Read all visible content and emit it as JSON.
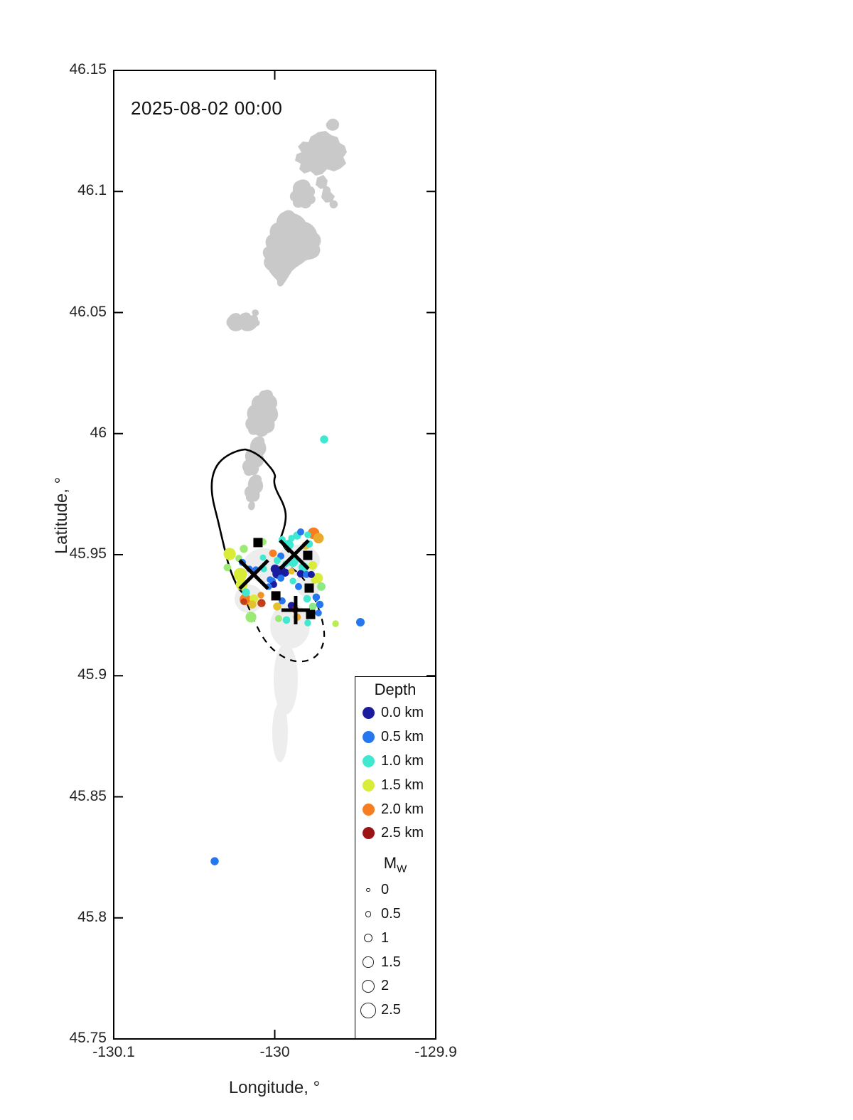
{
  "chart_data": {
    "type": "scatter",
    "timestamp_label": "2025-08-02 00:00",
    "xlabel": "Longitude, °",
    "ylabel": "Latitude, °",
    "xlim": [
      -130.1,
      -129.9
    ],
    "ylim": [
      45.75,
      46.15
    ],
    "grid": false,
    "x_ticks": [
      {
        "value": -130.1,
        "label": "-130.1"
      },
      {
        "value": -130.0,
        "label": "-130"
      },
      {
        "value": -129.9,
        "label": "-129.9"
      }
    ],
    "y_ticks": [
      {
        "value": 46.15,
        "label": "46.15"
      },
      {
        "value": 46.1,
        "label": "46.1"
      },
      {
        "value": 46.05,
        "label": "46.05"
      },
      {
        "value": 46.0,
        "label": "46"
      },
      {
        "value": 45.95,
        "label": "45.95"
      },
      {
        "value": 45.9,
        "label": "45.9"
      },
      {
        "value": 45.85,
        "label": "45.85"
      },
      {
        "value": 45.8,
        "label": "45.8"
      },
      {
        "value": 45.75,
        "label": "45.75"
      }
    ],
    "legend": {
      "depth_title": "Depth",
      "depth_entries": [
        {
          "label": "0.0 km",
          "depth_km": 0.0
        },
        {
          "label": "0.5 km",
          "depth_km": 0.5
        },
        {
          "label": "1.0 km",
          "depth_km": 1.0
        },
        {
          "label": "1.5 km",
          "depth_km": 1.5
        },
        {
          "label": "2.0 km",
          "depth_km": 2.0
        },
        {
          "label": "2.5 km",
          "depth_km": 2.5
        }
      ],
      "mw_title": "M",
      "mw_subscript": "W",
      "mw_entries": [
        {
          "label": "0",
          "mw": 0.0
        },
        {
          "label": "0.5",
          "mw": 0.5
        },
        {
          "label": "1",
          "mw": 1.0
        },
        {
          "label": "1.5",
          "mw": 1.5
        },
        {
          "label": "2",
          "mw": 2.0
        },
        {
          "label": "2.5",
          "mw": 2.5
        }
      ]
    },
    "depth_colormap": [
      {
        "depth_km": 0.0,
        "color": "#1b1ba0"
      },
      {
        "depth_km": 0.5,
        "color": "#2577f0"
      },
      {
        "depth_km": 1.0,
        "color": "#3fe8d0"
      },
      {
        "depth_km": 1.5,
        "color": "#d8ec38"
      },
      {
        "depth_km": 2.0,
        "color": "#f87d20"
      },
      {
        "depth_km": 2.5,
        "color": "#9b1416"
      }
    ],
    "earthquakes": [
      {
        "lon": -129.9839,
        "lat": 45.9594,
        "depth_km": 0.5,
        "mw": 0.7
      },
      {
        "lon": -129.9759,
        "lat": 45.9588,
        "depth_km": 2.0,
        "mw": 1.7
      },
      {
        "lon": -129.9728,
        "lat": 45.9568,
        "depth_km": 1.8,
        "mw": 1.4
      },
      {
        "lon": -129.9795,
        "lat": 45.9582,
        "depth_km": 1.0,
        "mw": 0.6
      },
      {
        "lon": -129.9786,
        "lat": 45.9544,
        "depth_km": 1.0,
        "mw": 0.8
      },
      {
        "lon": -129.9861,
        "lat": 45.9579,
        "depth_km": 1.0,
        "mw": 0.9
      },
      {
        "lon": -129.9896,
        "lat": 45.9568,
        "depth_km": 1.0,
        "mw": 0.6
      },
      {
        "lon": -129.9808,
        "lat": 45.9538,
        "depth_km": 1.7,
        "mw": 0.9
      },
      {
        "lon": -130.0073,
        "lat": 45.9553,
        "depth_km": 1.3,
        "mw": 0.7
      },
      {
        "lon": -129.9914,
        "lat": 45.9541,
        "depth_km": 1.0,
        "mw": 1.3
      },
      {
        "lon": -129.9954,
        "lat": 45.9562,
        "depth_km": 1.0,
        "mw": 0.7
      },
      {
        "lon": -130.0011,
        "lat": 45.9506,
        "depth_km": 2.0,
        "mw": 0.8
      },
      {
        "lon": -130.0192,
        "lat": 45.9524,
        "depth_km": 1.3,
        "mw": 0.9
      },
      {
        "lon": -130.028,
        "lat": 45.9503,
        "depth_km": 1.5,
        "mw": 1.8
      },
      {
        "lon": -130.0223,
        "lat": 45.9485,
        "depth_km": 1.3,
        "mw": 0.7
      },
      {
        "lon": -130.0201,
        "lat": 45.9468,
        "depth_km": 0.5,
        "mw": 0.7
      },
      {
        "lon": -130.0073,
        "lat": 45.9488,
        "depth_km": 1.0,
        "mw": 0.5
      },
      {
        "lon": -129.9962,
        "lat": 45.9494,
        "depth_km": 0.5,
        "mw": 0.7
      },
      {
        "lon": -129.9985,
        "lat": 45.9476,
        "depth_km": 1.0,
        "mw": 0.7
      },
      {
        "lon": -129.9887,
        "lat": 45.9471,
        "depth_km": 1.0,
        "mw": 1.4
      },
      {
        "lon": -129.9821,
        "lat": 45.9447,
        "depth_km": 1.0,
        "mw": 1.3
      },
      {
        "lon": -129.9932,
        "lat": 45.9462,
        "depth_km": 1.0,
        "mw": 0.6
      },
      {
        "lon": -129.9764,
        "lat": 45.9456,
        "depth_km": 1.5,
        "mw": 1.0
      },
      {
        "lon": -130.0157,
        "lat": 45.9441,
        "depth_km": 0.5,
        "mw": 0.6
      },
      {
        "lon": -130.0117,
        "lat": 45.9438,
        "depth_km": 0.5,
        "mw": 0.6
      },
      {
        "lon": -130.0068,
        "lat": 45.9441,
        "depth_km": 1.0,
        "mw": 0.6
      },
      {
        "lon": -129.9998,
        "lat": 45.9441,
        "depth_km": 0.0,
        "mw": 1.1
      },
      {
        "lon": -129.9958,
        "lat": 45.9435,
        "depth_km": 0.0,
        "mw": 1.0
      },
      {
        "lon": -129.9985,
        "lat": 45.9421,
        "depth_km": 0.0,
        "mw": 1.2
      },
      {
        "lon": -129.9936,
        "lat": 45.9426,
        "depth_km": 0.0,
        "mw": 0.9
      },
      {
        "lon": -129.9896,
        "lat": 45.9432,
        "depth_km": 1.7,
        "mw": 0.5
      },
      {
        "lon": -129.9839,
        "lat": 45.9421,
        "depth_km": 0.0,
        "mw": 0.8
      },
      {
        "lon": -129.9803,
        "lat": 45.9418,
        "depth_km": 0.5,
        "mw": 0.7
      },
      {
        "lon": -129.9773,
        "lat": 45.9418,
        "depth_km": 0.0,
        "mw": 0.7
      },
      {
        "lon": -129.9733,
        "lat": 45.9403,
        "depth_km": 1.5,
        "mw": 1.4
      },
      {
        "lon": -130.0214,
        "lat": 45.9418,
        "depth_km": 1.5,
        "mw": 2.0
      },
      {
        "lon": -130.0294,
        "lat": 45.9447,
        "depth_km": 1.3,
        "mw": 0.8
      },
      {
        "lon": -130.0205,
        "lat": 45.9377,
        "depth_km": 1.5,
        "mw": 1.7
      },
      {
        "lon": -130.0179,
        "lat": 45.9344,
        "depth_km": 1.0,
        "mw": 0.9
      },
      {
        "lon": -130.0183,
        "lat": 45.9315,
        "depth_km": 2.0,
        "mw": 1.6
      },
      {
        "lon": -130.0192,
        "lat": 45.9306,
        "depth_km": 2.3,
        "mw": 0.6
      },
      {
        "lon": -130.013,
        "lat": 45.9318,
        "depth_km": 1.5,
        "mw": 1.0
      },
      {
        "lon": -130.0139,
        "lat": 45.9294,
        "depth_km": 1.7,
        "mw": 0.9
      },
      {
        "lon": -130.0086,
        "lat": 45.9333,
        "depth_km": 1.9,
        "mw": 0.6
      },
      {
        "lon": -130.0082,
        "lat": 45.93,
        "depth_km": 2.3,
        "mw": 0.9
      },
      {
        "lon": -130.0148,
        "lat": 45.9242,
        "depth_km": 1.3,
        "mw": 1.5
      },
      {
        "lon": -129.9985,
        "lat": 45.9286,
        "depth_km": 1.7,
        "mw": 0.9
      },
      {
        "lon": -130.0015,
        "lat": 45.9391,
        "depth_km": 0.5,
        "mw": 0.7
      },
      {
        "lon": -129.9962,
        "lat": 45.9403,
        "depth_km": 0.5,
        "mw": 0.7
      },
      {
        "lon": -129.9954,
        "lat": 45.9309,
        "depth_km": 0.5,
        "mw": 0.7
      },
      {
        "lon": -129.9896,
        "lat": 45.9289,
        "depth_km": 0.0,
        "mw": 0.8
      },
      {
        "lon": -129.9874,
        "lat": 45.9274,
        "depth_km": 2.5,
        "mw": 0.7
      },
      {
        "lon": -129.9927,
        "lat": 45.923,
        "depth_km": 1.0,
        "mw": 0.8
      },
      {
        "lon": -129.9976,
        "lat": 45.9236,
        "depth_km": 1.3,
        "mw": 0.7
      },
      {
        "lon": -129.9861,
        "lat": 45.9242,
        "depth_km": 1.8,
        "mw": 0.8
      },
      {
        "lon": -130.0038,
        "lat": 45.9368,
        "depth_km": 0.5,
        "mw": 0.6
      },
      {
        "lon": -130.0007,
        "lat": 45.9377,
        "depth_km": 0.0,
        "mw": 0.7
      },
      {
        "lon": -130.0029,
        "lat": 45.9397,
        "depth_km": 0.5,
        "mw": 0.6
      },
      {
        "lon": -129.9852,
        "lat": 45.9368,
        "depth_km": 0.5,
        "mw": 0.7
      },
      {
        "lon": -129.9887,
        "lat": 45.9391,
        "depth_km": 1.0,
        "mw": 0.6
      },
      {
        "lon": -129.9751,
        "lat": 45.9397,
        "depth_km": 1.5,
        "mw": 0.9
      },
      {
        "lon": -129.9711,
        "lat": 45.9368,
        "depth_km": 1.25,
        "mw": 1.0
      },
      {
        "lon": -129.9799,
        "lat": 45.9318,
        "depth_km": 1.0,
        "mw": 0.8
      },
      {
        "lon": -129.9742,
        "lat": 45.9324,
        "depth_km": 0.5,
        "mw": 0.8
      },
      {
        "lon": -129.972,
        "lat": 45.9294,
        "depth_km": 0.5,
        "mw": 0.8
      },
      {
        "lon": -129.9764,
        "lat": 45.9286,
        "depth_km": 1.25,
        "mw": 0.8
      },
      {
        "lon": -129.9728,
        "lat": 45.9259,
        "depth_km": 0.5,
        "mw": 0.6
      },
      {
        "lon": -129.9795,
        "lat": 45.9218,
        "depth_km": 1.0,
        "mw": 0.6
      },
      {
        "lon": -129.9622,
        "lat": 45.9215,
        "depth_km": 1.4,
        "mw": 0.6
      },
      {
        "lon": -129.9468,
        "lat": 45.9221,
        "depth_km": 0.5,
        "mw": 1.0
      },
      {
        "lon": -129.9693,
        "lat": 45.9976,
        "depth_km": 1.0,
        "mw": 0.9
      },
      {
        "lon": -130.0373,
        "lat": 45.8234,
        "depth_km": 0.5,
        "mw": 0.9
      }
    ],
    "stations": [
      {
        "lon": -130.0104,
        "lat": 45.955
      },
      {
        "lon": -129.9795,
        "lat": 45.9497
      },
      {
        "lon": -129.9993,
        "lat": 45.933
      },
      {
        "lon": -129.9786,
        "lat": 45.9362
      },
      {
        "lon": -129.9777,
        "lat": 45.9253
      }
    ],
    "x_markers": [
      {
        "lon": -129.9879,
        "lat": 45.95
      },
      {
        "lon": -130.013,
        "lat": 45.9418
      }
    ],
    "plus_markers": [
      {
        "lon": -129.987,
        "lat": 45.9271
      }
    ]
  },
  "map": {
    "land_color": "#c9c9c9",
    "flow_color": "#ededed",
    "marker_color": "#000000",
    "outline_color": "#000000"
  }
}
